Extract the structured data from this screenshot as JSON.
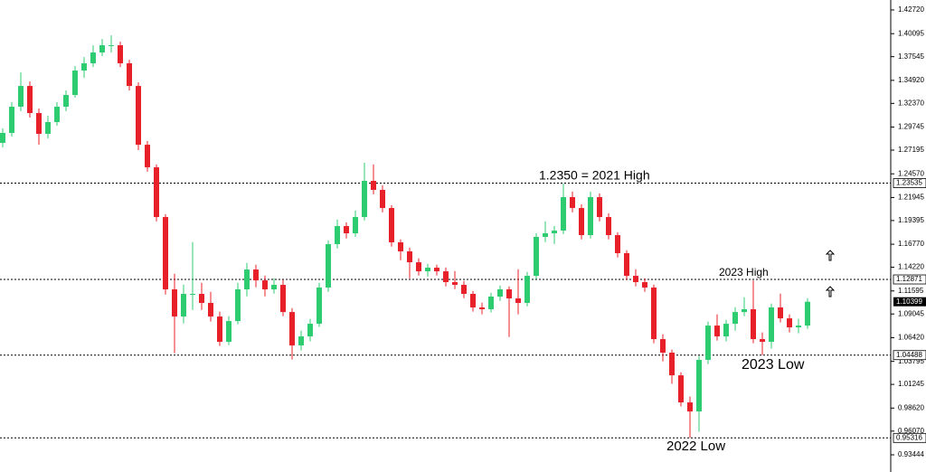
{
  "chart_data": {
    "type": "candlestick",
    "ylim": [
      0.93444,
      1.4272
    ],
    "yticks": [
      {
        "value": 1.4272,
        "label": "1.42720"
      },
      1.40095,
      1.37545,
      {
        "value": 1.3492,
        "label": "1.34920"
      },
      {
        "value": 1.3237,
        "label": "1.32370"
      },
      1.29745,
      1.27195,
      {
        "value": 1.2457,
        "label": "1.24570"
      },
      1.21945,
      1.19395,
      {
        "value": 1.1677,
        "label": "1.16770"
      },
      {
        "value": 1.1422,
        "label": "1.14220"
      },
      1.11595,
      1.09045,
      {
        "value": 1.0642,
        "label": "1.06420"
      },
      1.03795,
      1.01245,
      {
        "value": 0.9862,
        "label": "0.98620"
      },
      {
        "value": 0.9607,
        "label": "0.96070"
      },
      0.93444
    ],
    "up_color": "#2ecc71",
    "down_color": "#e8202a",
    "levels": [
      1.23535,
      1.12871,
      1.04488,
      0.95316
    ],
    "current_price": 1.10399,
    "annotations": [
      "1.2350 = 2021 High",
      "2023 High",
      "2023 Low",
      "2022 Low"
    ],
    "open": [
      1.28,
      1.291,
      1.32,
      1.343,
      1.313,
      1.29,
      1.303,
      1.32,
      1.333,
      1.3601,
      1.3681,
      1.3801,
      1.3881,
      1.3881,
      1.3681,
      1.343,
      1.2779,
      1.2529,
      1.1978,
      1.1177,
      1.0876,
      1.1127,
      1.1127,
      1.1027,
      1.0876,
      1.0596,
      1.0826,
      1.1177,
      1.1397,
      1.1277,
      1.1177,
      1.1227,
      1.0926,
      1.0556,
      1.0656,
      1.0796,
      1.1197,
      1.1678,
      1.1878,
      1.1798,
      1.1978,
      1.2379,
      1.2279,
      1.2078,
      1.1698,
      1.1598,
      1.1477,
      1.1377,
      1.1417,
      1.1377,
      1.1257,
      1.1227,
      1.1127,
      1.0977,
      1.0957,
      1.1097,
      1.1177,
      1.1077,
      1.1027,
      1.1327,
      1.1758,
      1.1798,
      1.1828,
      1.2199,
      1.2078,
      1.1778,
      1.2199,
      1.1978,
      1.1778,
      1.1578,
      1.1327,
      1.1257,
      1.1197,
      1.0626,
      1.0476,
      1.0225,
      0.9925,
      0.9825,
      1.0396,
      1.0776,
      1.0656,
      1.0796,
      1.0926,
      1.0957,
      1.0626,
      1.0596,
      1.0977,
      1.0856,
      1.0756,
      1.0776
    ],
    "high": [
      1.296,
      1.325,
      1.358,
      1.348,
      1.318,
      1.31,
      1.325,
      1.338,
      1.365,
      1.375,
      1.388,
      1.395,
      1.399,
      1.392,
      1.372,
      1.347,
      1.282,
      1.256,
      1.201,
      1.135,
      1.123,
      1.17,
      1.125,
      1.115,
      1.093,
      1.088,
      1.125,
      1.147,
      1.145,
      1.133,
      1.13,
      1.128,
      1.097,
      1.072,
      1.085,
      1.125,
      1.172,
      1.195,
      1.192,
      1.205,
      1.258,
      1.256,
      1.233,
      1.211,
      1.173,
      1.164,
      1.152,
      1.146,
      1.145,
      1.142,
      1.138,
      1.127,
      1.116,
      1.103,
      1.114,
      1.122,
      1.121,
      1.14,
      1.137,
      1.18,
      1.193,
      1.188,
      1.2349,
      1.226,
      1.212,
      1.226,
      1.224,
      1.202,
      1.181,
      1.161,
      1.14,
      1.13,
      1.123,
      1.068,
      1.051,
      1.026,
      0.999,
      1.044,
      1.082,
      1.09,
      1.084,
      1.098,
      1.109,
      1.1276,
      1.07,
      1.102,
      1.113,
      1.09,
      1.085,
      1.108
    ],
    "low": [
      1.275,
      1.287,
      1.315,
      1.308,
      1.278,
      1.285,
      1.299,
      1.315,
      1.33,
      1.352,
      1.364,
      1.376,
      1.38,
      1.364,
      1.338,
      1.272,
      1.248,
      1.193,
      1.112,
      1.047,
      1.08,
      1.095,
      1.095,
      1.082,
      1.055,
      1.056,
      1.079,
      1.11,
      1.12,
      1.11,
      1.113,
      1.088,
      1.04,
      1.05,
      1.06,
      1.076,
      1.115,
      1.163,
      1.174,
      1.176,
      1.194,
      1.223,
      1.203,
      1.165,
      1.15,
      1.13,
      1.133,
      1.132,
      1.133,
      1.121,
      1.118,
      1.108,
      1.093,
      1.09,
      1.092,
      1.105,
      1.065,
      1.09,
      1.099,
      1.129,
      1.17,
      1.168,
      1.179,
      1.203,
      1.173,
      1.174,
      1.193,
      1.173,
      1.153,
      1.128,
      1.121,
      1.115,
      1.058,
      1.038,
      1.013,
      0.988,
      0.9532,
      0.96,
      1.035,
      1.061,
      1.06,
      1.072,
      1.088,
      1.058,
      1.0449,
      1.052,
      1.081,
      1.07,
      1.069,
      1.074
    ],
    "close": [
      1.291,
      1.32,
      1.343,
      1.313,
      1.29,
      1.303,
      1.32,
      1.333,
      1.3601,
      1.3681,
      1.3801,
      1.3881,
      1.3881,
      1.3681,
      1.343,
      1.2779,
      1.2529,
      1.1978,
      1.1177,
      1.0876,
      1.1127,
      1.1127,
      1.1027,
      1.0876,
      1.0596,
      1.0826,
      1.1177,
      1.1397,
      1.1277,
      1.1177,
      1.1227,
      1.0926,
      1.0556,
      1.0656,
      1.0796,
      1.1197,
      1.1678,
      1.1878,
      1.1798,
      1.1978,
      1.2379,
      1.2279,
      1.2078,
      1.1698,
      1.1598,
      1.1477,
      1.1377,
      1.1417,
      1.1377,
      1.1257,
      1.1227,
      1.1127,
      1.0977,
      1.0957,
      1.1097,
      1.1177,
      1.1077,
      1.1027,
      1.1327,
      1.1758,
      1.1798,
      1.1828,
      1.2199,
      1.2078,
      1.1778,
      1.2199,
      1.1978,
      1.1778,
      1.1578,
      1.1327,
      1.1257,
      1.1197,
      1.0626,
      1.0476,
      1.0225,
      0.9925,
      0.9825,
      1.0396,
      1.0776,
      1.0656,
      1.0796,
      1.0926,
      1.0957,
      1.0626,
      1.0596,
      1.0977,
      1.0856,
      1.0756,
      1.0776,
      1.104
    ]
  }
}
